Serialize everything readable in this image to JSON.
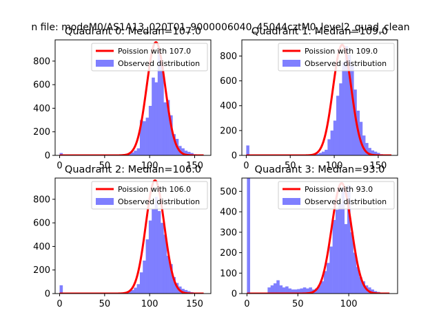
{
  "suptitle": "n file: modeM0/AS1A13_020T01_9000006040_45044cztM0_level2_quad_clean",
  "colors": {
    "bars": "#7f7fff",
    "poisson": "#ff0000",
    "axes": "#000000"
  },
  "chart_data": [
    {
      "type": "bar",
      "title": "Quadrant 0: Median=107.0",
      "xlim": [
        -5,
        168
      ],
      "ylim": [
        0,
        980
      ],
      "xticks": [
        0,
        50,
        100,
        150
      ],
      "yticks": [
        0,
        200,
        400,
        600,
        800
      ],
      "legend": {
        "position": "top-right",
        "entries": [
          "Poission with 107.0",
          "Observed distribution"
        ]
      },
      "series": [
        {
          "name": "Observed distribution",
          "kind": "histogram",
          "bin_width": 3.3,
          "bins": [
            [
              0,
              20
            ],
            [
              3.3,
              5
            ],
            [
              6.6,
              5
            ],
            [
              9.9,
              5
            ],
            [
              13.2,
              5
            ],
            [
              16.5,
              5
            ],
            [
              19.8,
              5
            ],
            [
              23.1,
              5
            ],
            [
              26.4,
              5
            ],
            [
              29.7,
              5
            ],
            [
              33,
              5
            ],
            [
              36.3,
              5
            ],
            [
              39.6,
              5
            ],
            [
              42.9,
              5
            ],
            [
              46.2,
              5
            ],
            [
              49.5,
              5
            ],
            [
              52.8,
              5
            ],
            [
              56.1,
              5
            ],
            [
              59.4,
              5
            ],
            [
              62.7,
              5
            ],
            [
              66,
              5
            ],
            [
              69.3,
              8
            ],
            [
              72.6,
              10
            ],
            [
              75.9,
              15
            ],
            [
              79.2,
              25
            ],
            [
              82.5,
              40
            ],
            [
              85.8,
              60
            ],
            [
              89.1,
              300
            ],
            [
              92.4,
              290
            ],
            [
              95.7,
              320
            ],
            [
              99,
              420
            ],
            [
              102.3,
              660
            ],
            [
              105.6,
              620
            ],
            [
              108.9,
              900
            ],
            [
              112.2,
              770
            ],
            [
              115.5,
              450
            ],
            [
              118.8,
              470
            ],
            [
              122.1,
              340
            ],
            [
              125.4,
              180
            ],
            [
              128.7,
              140
            ],
            [
              132,
              80
            ],
            [
              135.3,
              60
            ],
            [
              138.6,
              40
            ],
            [
              141.9,
              30
            ],
            [
              145.2,
              20
            ],
            [
              148.5,
              10
            ],
            [
              151.8,
              6
            ],
            [
              155.1,
              4
            ]
          ]
        },
        {
          "name": "Poission with 107.0",
          "kind": "poisson_curve",
          "mean": 107.0,
          "x_range": [
            0,
            160
          ],
          "peak": 960
        }
      ]
    },
    {
      "type": "bar",
      "title": "Quadrant 1: Median=109.0",
      "xlim": [
        -5,
        172
      ],
      "ylim": [
        0,
        930
      ],
      "xticks": [
        0,
        50,
        100,
        150
      ],
      "yticks": [
        0,
        200,
        400,
        600,
        800
      ],
      "legend": {
        "position": "top-right",
        "entries": [
          "Poission with 109.0",
          "Observed distribution"
        ]
      },
      "series": [
        {
          "name": "Observed distribution",
          "kind": "histogram",
          "bin_width": 3.3,
          "bins": [
            [
              0,
              80
            ],
            [
              3.3,
              5
            ],
            [
              6.6,
              5
            ],
            [
              9.9,
              5
            ],
            [
              13.2,
              5
            ],
            [
              16.5,
              5
            ],
            [
              19.8,
              5
            ],
            [
              23.1,
              5
            ],
            [
              26.4,
              5
            ],
            [
              29.7,
              5
            ],
            [
              33,
              5
            ],
            [
              36.3,
              5
            ],
            [
              39.6,
              5
            ],
            [
              42.9,
              5
            ],
            [
              46.2,
              5
            ],
            [
              49.5,
              5
            ],
            [
              52.8,
              5
            ],
            [
              56.1,
              5
            ],
            [
              59.4,
              5
            ],
            [
              62.7,
              5
            ],
            [
              66,
              5
            ],
            [
              69.3,
              5
            ],
            [
              72.6,
              8
            ],
            [
              75.9,
              10
            ],
            [
              79.2,
              12
            ],
            [
              82.5,
              20
            ],
            [
              85.8,
              30
            ],
            [
              89.1,
              45
            ],
            [
              92.4,
              130
            ],
            [
              95.7,
              200
            ],
            [
              99,
              280
            ],
            [
              102.3,
              480
            ],
            [
              105.6,
              580
            ],
            [
              108.9,
              750
            ],
            [
              112.2,
              880
            ],
            [
              115.5,
              810
            ],
            [
              118.8,
              720
            ],
            [
              122.1,
              530
            ],
            [
              125.4,
              360
            ],
            [
              128.7,
              270
            ],
            [
              132,
              160
            ],
            [
              135.3,
              100
            ],
            [
              138.6,
              60
            ],
            [
              141.9,
              40
            ],
            [
              145.2,
              30
            ],
            [
              148.5,
              20
            ],
            [
              151.8,
              10
            ],
            [
              155.1,
              6
            ]
          ]
        },
        {
          "name": "Poission with 109.0",
          "kind": "poisson_curve",
          "mean": 109.0,
          "x_range": [
            0,
            165
          ],
          "peak": 890
        }
      ]
    },
    {
      "type": "bar",
      "title": "Quadrant 2: Median=106.0",
      "xlim": [
        -5,
        168
      ],
      "ylim": [
        0,
        980
      ],
      "xticks": [
        0,
        50,
        100,
        150
      ],
      "yticks": [
        0,
        200,
        400,
        600,
        800
      ],
      "legend": {
        "position": "top-right",
        "entries": [
          "Poission with 106.0",
          "Observed distribution"
        ]
      },
      "series": [
        {
          "name": "Observed distribution",
          "kind": "histogram",
          "bin_width": 3.3,
          "bins": [
            [
              0,
              70
            ],
            [
              3.3,
              5
            ],
            [
              6.6,
              5
            ],
            [
              9.9,
              5
            ],
            [
              13.2,
              5
            ],
            [
              16.5,
              5
            ],
            [
              19.8,
              5
            ],
            [
              23.1,
              5
            ],
            [
              26.4,
              5
            ],
            [
              29.7,
              5
            ],
            [
              33,
              5
            ],
            [
              36.3,
              5
            ],
            [
              39.6,
              5
            ],
            [
              42.9,
              5
            ],
            [
              46.2,
              5
            ],
            [
              49.5,
              5
            ],
            [
              52.8,
              5
            ],
            [
              56.1,
              5
            ],
            [
              59.4,
              5
            ],
            [
              62.7,
              5
            ],
            [
              66,
              5
            ],
            [
              69.3,
              8
            ],
            [
              72.6,
              12
            ],
            [
              75.9,
              20
            ],
            [
              79.2,
              30
            ],
            [
              82.5,
              50
            ],
            [
              85.8,
              80
            ],
            [
              89.1,
              180
            ],
            [
              92.4,
              280
            ],
            [
              95.7,
              460
            ],
            [
              99,
              620
            ],
            [
              102.3,
              720
            ],
            [
              105.6,
              820
            ],
            [
              108.9,
              700
            ],
            [
              112.2,
              600
            ],
            [
              115.5,
              500
            ],
            [
              118.8,
              320
            ],
            [
              122.1,
              250
            ],
            [
              125.4,
              140
            ],
            [
              128.7,
              90
            ],
            [
              132,
              60
            ],
            [
              135.3,
              40
            ],
            [
              138.6,
              30
            ],
            [
              141.9,
              20
            ],
            [
              145.2,
              12
            ],
            [
              148.5,
              8
            ],
            [
              151.8,
              5
            ],
            [
              155.1,
              4
            ]
          ]
        },
        {
          "name": "Poission with 106.0",
          "kind": "poisson_curve",
          "mean": 106.0,
          "x_range": [
            0,
            160
          ],
          "peak": 960
        }
      ]
    },
    {
      "type": "bar",
      "title": "Quadrant 3: Median=93.0",
      "xlim": [
        -5,
        148
      ],
      "ylim": [
        0,
        565
      ],
      "xticks": [
        0,
        50,
        100
      ],
      "yticks": [
        0,
        100,
        200,
        300,
        400,
        500
      ],
      "legend": {
        "position": "top-right",
        "entries": [
          "Poission with 93.0",
          "Observed distribution"
        ]
      },
      "series": [
        {
          "name": "Observed distribution",
          "kind": "histogram",
          "bin_width": 2.9,
          "bins": [
            [
              0,
              565
            ],
            [
              2.9,
              3
            ],
            [
              5.8,
              3
            ],
            [
              8.7,
              3
            ],
            [
              11.6,
              3
            ],
            [
              14.5,
              3
            ],
            [
              17.4,
              3
            ],
            [
              20.3,
              30
            ],
            [
              23.2,
              40
            ],
            [
              26.1,
              50
            ],
            [
              29,
              65
            ],
            [
              31.9,
              40
            ],
            [
              34.8,
              30
            ],
            [
              37.7,
              35
            ],
            [
              40.6,
              25
            ],
            [
              43.5,
              20
            ],
            [
              46.4,
              20
            ],
            [
              49.3,
              22
            ],
            [
              52.2,
              25
            ],
            [
              55.1,
              30
            ],
            [
              58,
              25
            ],
            [
              60.9,
              30
            ],
            [
              63.8,
              20
            ],
            [
              66.7,
              25
            ],
            [
              69.6,
              40
            ],
            [
              72.5,
              60
            ],
            [
              75.4,
              110
            ],
            [
              78.3,
              150
            ],
            [
              81.2,
              230
            ],
            [
              84.1,
              360
            ],
            [
              87,
              410
            ],
            [
              89.9,
              440
            ],
            [
              92.8,
              520
            ],
            [
              95.7,
              340
            ],
            [
              98.6,
              530
            ],
            [
              101.5,
              300
            ],
            [
              104.4,
              200
            ],
            [
              107.3,
              130
            ],
            [
              110.2,
              80
            ],
            [
              113.1,
              60
            ],
            [
              116,
              40
            ],
            [
              118.9,
              30
            ],
            [
              121.8,
              20
            ],
            [
              124.7,
              12
            ],
            [
              127.6,
              8
            ]
          ]
        },
        {
          "name": "Poission with 93.0",
          "kind": "poisson_curve",
          "mean": 93.0,
          "x_range": [
            0,
            140
          ],
          "peak": 540
        }
      ]
    }
  ]
}
